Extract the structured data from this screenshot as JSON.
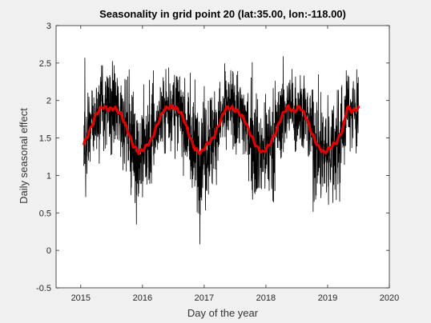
{
  "figure": {
    "background": "#f0f0f0"
  },
  "chart_data": {
    "type": "line",
    "title": "Seasonality in grid point 20 (lat:35.00, lon:-118.00)",
    "xlabel": "Day of the year",
    "ylabel": "Daily seasonal effect",
    "xlim": [
      2014.6,
      2020
    ],
    "ylim": [
      -0.5,
      3
    ],
    "xticks": [
      2015,
      2016,
      2017,
      2018,
      2019,
      2020
    ],
    "xtick_labels": [
      "2015",
      "2016",
      "2017",
      "2018",
      "2019",
      "2020"
    ],
    "yticks": [
      -0.5,
      0,
      0.5,
      1,
      1.5,
      2,
      2.5,
      3
    ],
    "ytick_labels": [
      "-0.5",
      "0",
      "0.5",
      "1",
      "1.5",
      "2",
      "2.5",
      "3"
    ],
    "grid": false,
    "x_start": 2015.05,
    "x_end": 2019.5,
    "series": [
      {
        "role": "daily",
        "color": "#000000",
        "note": "dense daily series fluctuating roughly between -0.3 and 2.8"
      },
      {
        "role": "smoothed",
        "color": "#e00000",
        "points": [
          [
            2015.05,
            1.42
          ],
          [
            2015.15,
            1.6
          ],
          [
            2015.25,
            1.82
          ],
          [
            2015.35,
            1.92
          ],
          [
            2015.45,
            1.88
          ],
          [
            2015.55,
            1.9
          ],
          [
            2015.65,
            1.82
          ],
          [
            2015.75,
            1.62
          ],
          [
            2015.85,
            1.4
          ],
          [
            2015.95,
            1.3
          ],
          [
            2016.05,
            1.38
          ],
          [
            2016.15,
            1.48
          ],
          [
            2016.25,
            1.7
          ],
          [
            2016.35,
            1.88
          ],
          [
            2016.45,
            1.92
          ],
          [
            2016.55,
            1.9
          ],
          [
            2016.65,
            1.8
          ],
          [
            2016.75,
            1.55
          ],
          [
            2016.85,
            1.35
          ],
          [
            2016.95,
            1.3
          ],
          [
            2017.05,
            1.42
          ],
          [
            2017.15,
            1.5
          ],
          [
            2017.25,
            1.7
          ],
          [
            2017.35,
            1.9
          ],
          [
            2017.45,
            1.9
          ],
          [
            2017.55,
            1.85
          ],
          [
            2017.65,
            1.75
          ],
          [
            2017.75,
            1.55
          ],
          [
            2017.85,
            1.38
          ],
          [
            2017.95,
            1.3
          ],
          [
            2018.05,
            1.4
          ],
          [
            2018.15,
            1.55
          ],
          [
            2018.25,
            1.78
          ],
          [
            2018.35,
            1.92
          ],
          [
            2018.45,
            1.85
          ],
          [
            2018.55,
            1.92
          ],
          [
            2018.65,
            1.78
          ],
          [
            2018.75,
            1.55
          ],
          [
            2018.85,
            1.38
          ],
          [
            2018.95,
            1.3
          ],
          [
            2019.05,
            1.38
          ],
          [
            2019.15,
            1.45
          ],
          [
            2019.25,
            1.62
          ],
          [
            2019.32,
            1.92
          ],
          [
            2019.4,
            1.85
          ],
          [
            2019.5,
            1.9
          ]
        ]
      }
    ]
  }
}
